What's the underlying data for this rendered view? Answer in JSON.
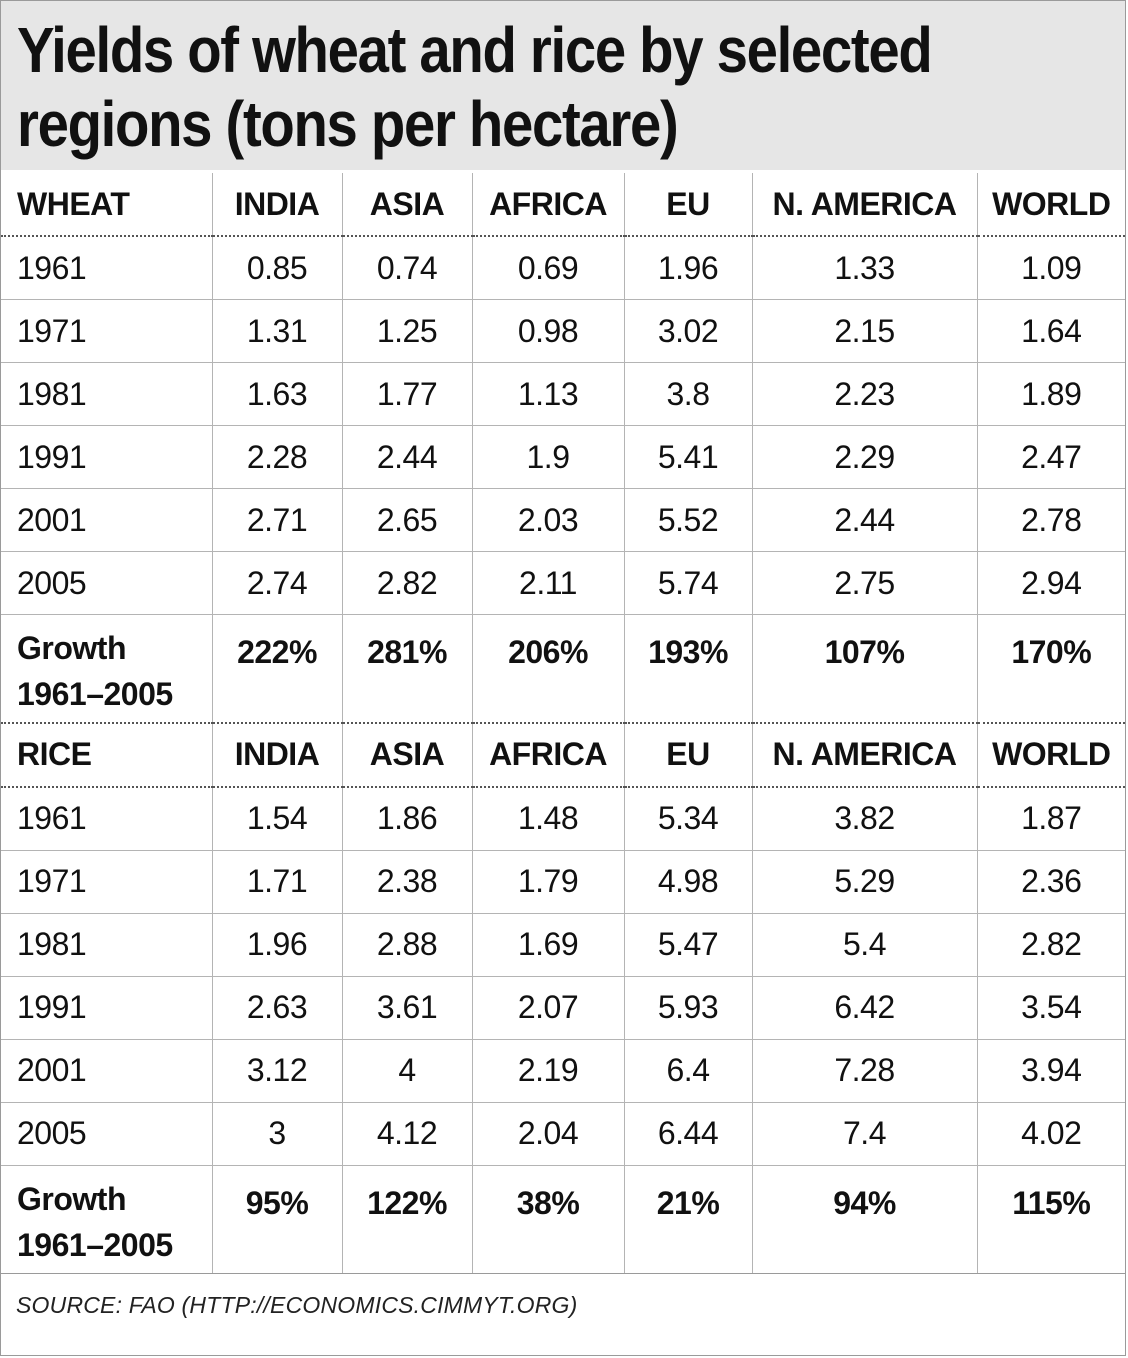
{
  "title": "Yields of wheat and rice by selected regions (tons per hectare)",
  "source": "SOURCE:  FAO (HTTP://ECONOMICS.CIMMYT.ORG)",
  "columns": [
    "INDIA",
    "ASIA",
    "AFRICA",
    "EU",
    "N. AMERICA",
    "WORLD"
  ],
  "chart_data": {
    "type": "table",
    "title": "Yields of wheat and rice by selected regions (tons per hectare)",
    "columns": [
      "INDIA",
      "ASIA",
      "AFRICA",
      "EU",
      "N. AMERICA",
      "WORLD"
    ],
    "sections": [
      {
        "name": "WHEAT",
        "rows": [
          {
            "label": "1961",
            "values": [
              "0.85",
              "0.74",
              "0.69",
              "1.96",
              "1.33",
              "1.09"
            ]
          },
          {
            "label": "1971",
            "values": [
              "1.31",
              "1.25",
              "0.98",
              "3.02",
              "2.15",
              "1.64"
            ]
          },
          {
            "label": "1981",
            "values": [
              "1.63",
              "1.77",
              "1.13",
              "3.8",
              "2.23",
              "1.89"
            ]
          },
          {
            "label": "1991",
            "values": [
              "2.28",
              "2.44",
              "1.9",
              "5.41",
              "2.29",
              "2.47"
            ]
          },
          {
            "label": "2001",
            "values": [
              "2.71",
              "2.65",
              "2.03",
              "5.52",
              "2.44",
              "2.78"
            ]
          },
          {
            "label": "2005",
            "values": [
              "2.74",
              "2.82",
              "2.11",
              "5.74",
              "2.75",
              "2.94"
            ]
          }
        ],
        "growth": {
          "label_line1": "Growth",
          "label_line2": "1961–2005",
          "values": [
            "222%",
            "281%",
            "206%",
            "193%",
            "107%",
            "170%"
          ]
        }
      },
      {
        "name": "RICE",
        "rows": [
          {
            "label": "1961",
            "values": [
              "1.54",
              "1.86",
              "1.48",
              "5.34",
              "3.82",
              "1.87"
            ]
          },
          {
            "label": "1971",
            "values": [
              "1.71",
              "2.38",
              "1.79",
              "4.98",
              "5.29",
              "2.36"
            ]
          },
          {
            "label": "1981",
            "values": [
              "1.96",
              "2.88",
              "1.69",
              "5.47",
              "5.4",
              "2.82"
            ]
          },
          {
            "label": "1991",
            "values": [
              "2.63",
              "3.61",
              "2.07",
              "5.93",
              "6.42",
              "3.54"
            ]
          },
          {
            "label": "2001",
            "values": [
              "3.12",
              "4",
              "2.19",
              "6.4",
              "7.28",
              "3.94"
            ]
          },
          {
            "label": "2005",
            "values": [
              "3",
              "4.12",
              "2.04",
              "6.44",
              "7.4",
              "4.02"
            ]
          }
        ],
        "growth": {
          "label_line1": "Growth",
          "label_line2": "1961–2005",
          "values": [
            "95%",
            "122%",
            "38%",
            "21%",
            "94%",
            "115%"
          ]
        }
      }
    ]
  }
}
